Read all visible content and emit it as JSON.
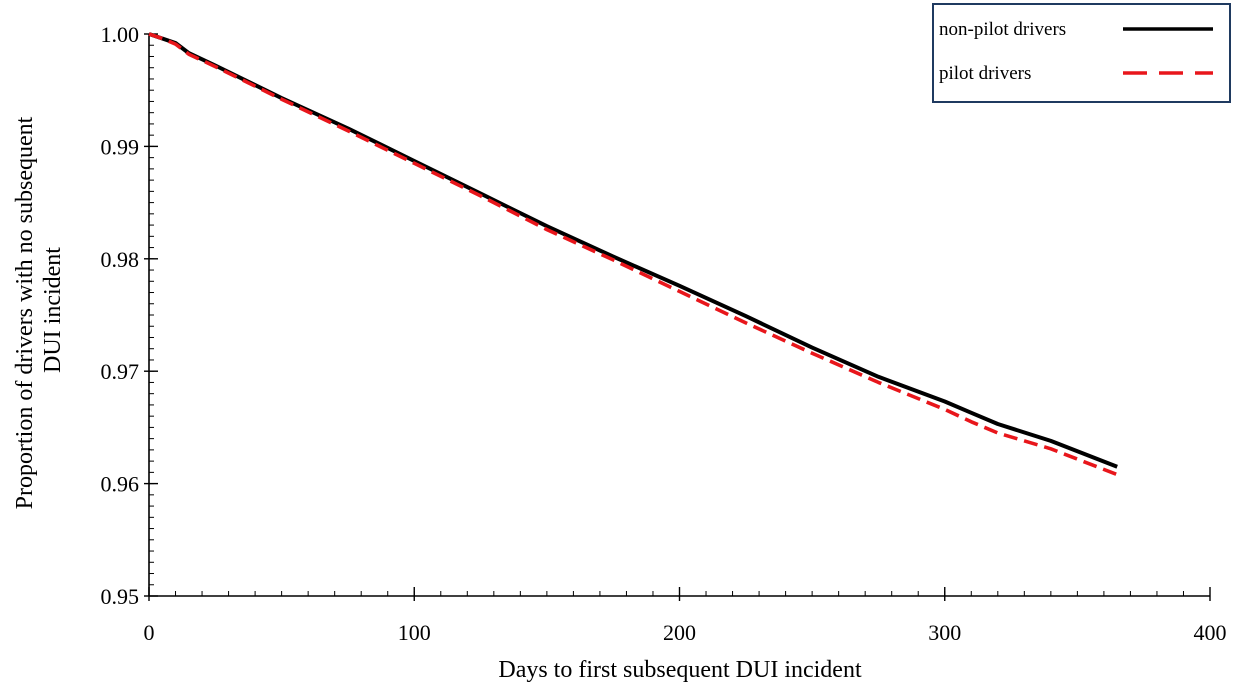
{
  "chart_data": {
    "type": "line",
    "title": "",
    "xlabel": "Days to first subsequent DUI incident",
    "ylabel_lines": [
      "Proportion of drivers with no subsequent",
      "DUI incident"
    ],
    "xlim": [
      0,
      400
    ],
    "ylim": [
      0.95,
      1.0
    ],
    "x_ticks": [
      0,
      100,
      200,
      300,
      400
    ],
    "x_tick_labels": [
      "0",
      "100",
      "200",
      "300",
      "400"
    ],
    "y_ticks": [
      0.95,
      0.96,
      0.97,
      0.98,
      0.99,
      1.0
    ],
    "y_tick_labels": [
      "0.95",
      "0.96",
      "0.97",
      "0.98",
      "0.99",
      "1.00"
    ],
    "grid": false,
    "legend_position": "top-right",
    "series": [
      {
        "name": "non-pilot drivers",
        "color": "#000000",
        "dash": "solid",
        "x": [
          0,
          5,
          10,
          15,
          25,
          50,
          75,
          100,
          125,
          150,
          175,
          200,
          225,
          250,
          275,
          300,
          310,
          320,
          340,
          365
        ],
        "y": [
          1.0,
          0.9996,
          0.9992,
          0.9983,
          0.9972,
          0.9943,
          0.9916,
          0.9887,
          0.9858,
          0.9829,
          0.9802,
          0.9776,
          0.9749,
          0.9721,
          0.9695,
          0.9673,
          0.9663,
          0.9653,
          0.9638,
          0.9615
        ]
      },
      {
        "name": "pilot drivers",
        "color": "#e8161b",
        "dash": "dashed",
        "x": [
          0,
          5,
          10,
          15,
          25,
          50,
          75,
          100,
          125,
          150,
          175,
          200,
          225,
          250,
          275,
          300,
          310,
          320,
          340,
          365
        ],
        "y": [
          1.0,
          0.9996,
          0.9991,
          0.9982,
          0.9971,
          0.9942,
          0.9914,
          0.9885,
          0.9856,
          0.9826,
          0.9799,
          0.9771,
          0.9743,
          0.9716,
          0.969,
          0.9666,
          0.9655,
          0.9645,
          0.9631,
          0.9608
        ]
      }
    ]
  }
}
